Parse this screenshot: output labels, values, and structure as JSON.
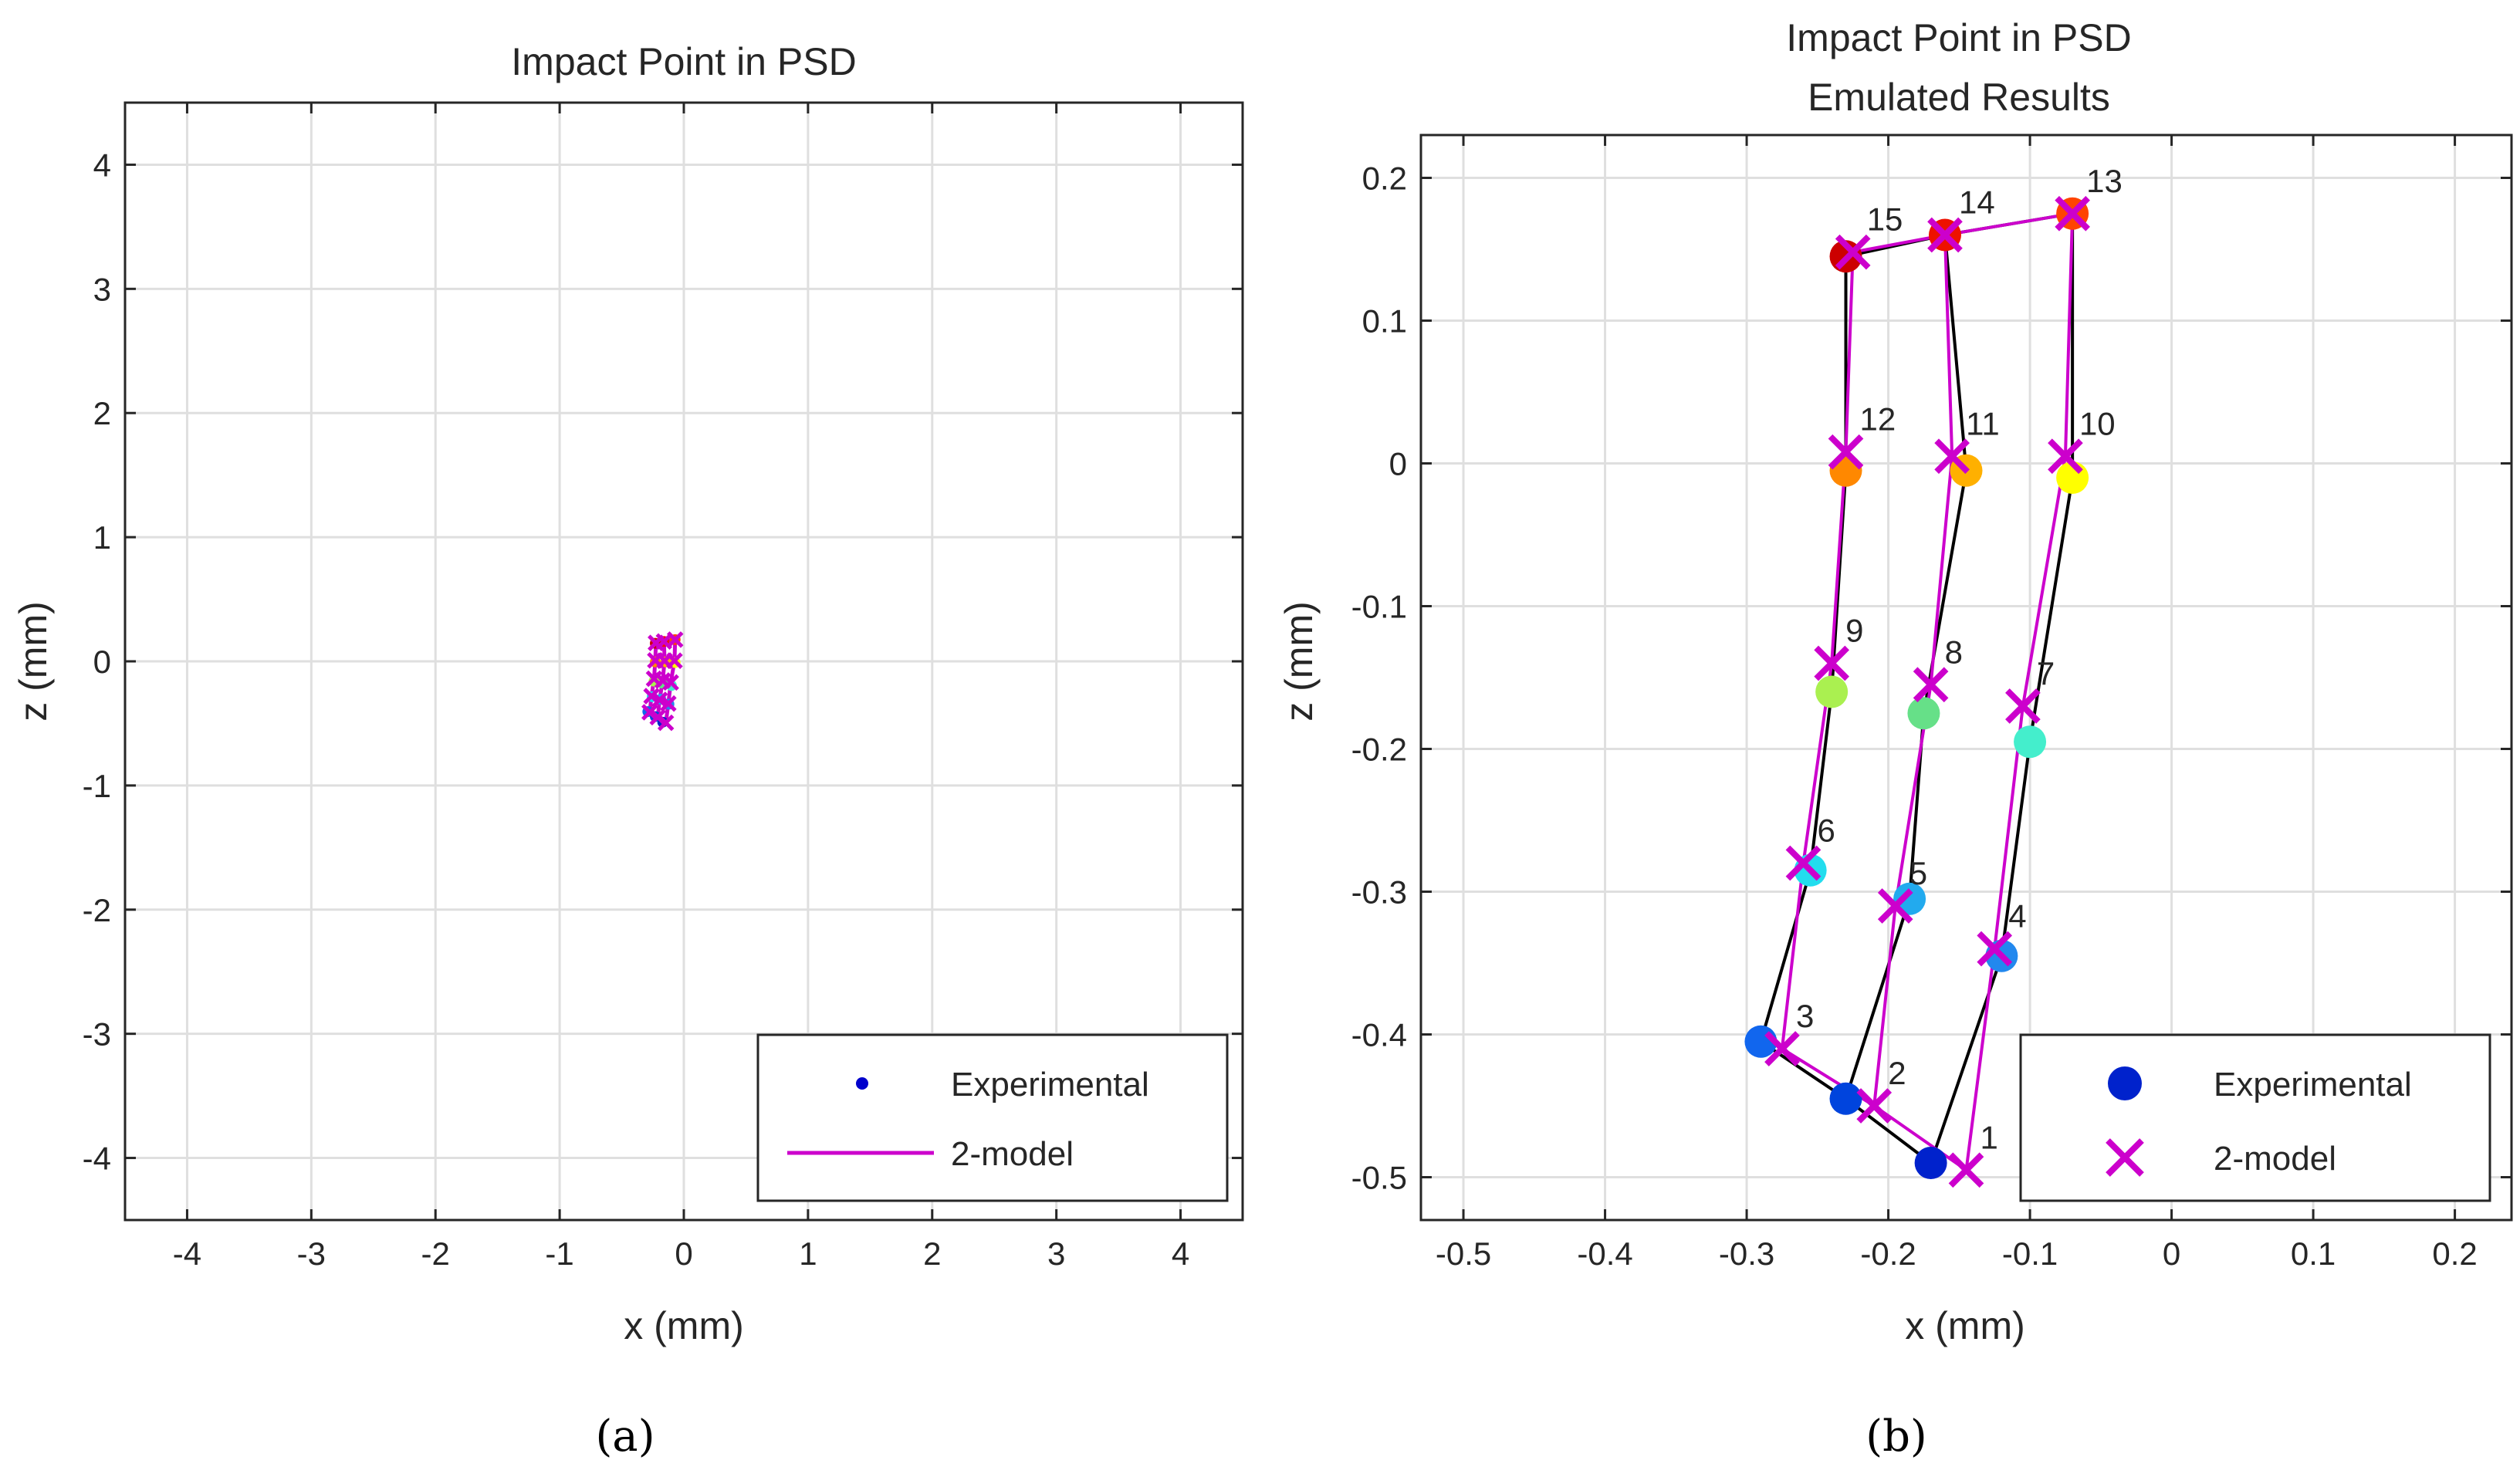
{
  "chart_data": [
    {
      "type": "line",
      "title": "Impact Point in PSD",
      "subtitle": "",
      "xlabel": "x (mm)",
      "ylabel": "z (mm)",
      "xlim": [
        -4.5,
        4.5
      ],
      "ylim": [
        -4.5,
        4.5
      ],
      "xticks": [
        -4,
        -3,
        -2,
        -1,
        0,
        1,
        2,
        3,
        4
      ],
      "yticks": [
        -4,
        -3,
        -2,
        -1,
        0,
        1,
        2,
        3,
        4
      ],
      "grid": true,
      "legend_position": "bottom-right",
      "caption": "(a)",
      "series": [
        {
          "name": "Experimental",
          "style": "marker-circle",
          "color": "#0000cc",
          "x": [
            -0.17,
            -0.23,
            -0.29,
            -0.12,
            -0.185,
            -0.255,
            -0.1,
            -0.175,
            -0.24,
            -0.07,
            -0.145,
            -0.23,
            -0.07,
            -0.16,
            -0.23
          ],
          "y": [
            -0.49,
            -0.445,
            -0.405,
            -0.345,
            -0.305,
            -0.285,
            -0.195,
            -0.175,
            -0.16,
            -0.01,
            -0.005,
            -0.005,
            0.175,
            0.16,
            0.145
          ]
        },
        {
          "name": "2-model",
          "style": "line",
          "color": "#cc00cc",
          "x": [
            -0.145,
            -0.21,
            -0.275,
            -0.125,
            -0.195,
            -0.26,
            -0.105,
            -0.17,
            -0.24,
            -0.075,
            -0.155,
            -0.23,
            -0.07,
            -0.16,
            -0.225
          ],
          "y": [
            -0.495,
            -0.45,
            -0.41,
            -0.34,
            -0.31,
            -0.28,
            -0.17,
            -0.155,
            -0.14,
            0.005,
            0.005,
            0.008,
            0.175,
            0.16,
            0.148
          ]
        }
      ]
    },
    {
      "type": "scatter",
      "title": "Impact Point in PSD",
      "subtitle": "Emulated Results",
      "xlabel": "x (mm)",
      "ylabel": "z (mm)",
      "xlim": [
        -0.53,
        0.24
      ],
      "ylim": [
        -0.53,
        0.23
      ],
      "xticks": [
        -0.5,
        -0.4,
        -0.3,
        -0.2,
        -0.1,
        0,
        0.1,
        0.2
      ],
      "yticks": [
        -0.5,
        -0.4,
        -0.3,
        -0.2,
        -0.1,
        0,
        0.1,
        0.2
      ],
      "grid": true,
      "legend_position": "bottom-right",
      "caption": "(b)",
      "series": [
        {
          "name": "Experimental",
          "marker": "circle",
          "line_color": "#000000",
          "x": [
            -0.17,
            -0.23,
            -0.29,
            -0.12,
            -0.185,
            -0.255,
            -0.1,
            -0.175,
            -0.24,
            -0.07,
            -0.145,
            -0.23,
            -0.07,
            -0.16,
            -0.23
          ],
          "y": [
            -0.49,
            -0.445,
            -0.405,
            -0.345,
            -0.305,
            -0.285,
            -0.195,
            -0.175,
            -0.16,
            -0.01,
            -0.005,
            -0.005,
            0.175,
            0.16,
            0.145
          ],
          "colors": [
            "#0022cc",
            "#0044dd",
            "#1166ee",
            "#2288ee",
            "#22aaee",
            "#22ddee",
            "#44eecc",
            "#66e088",
            "#aaf050",
            "#ffff00",
            "#ffb000",
            "#ff8800",
            "#ff4400",
            "#ee1100",
            "#cc0000"
          ]
        },
        {
          "name": "2-model",
          "marker": "x",
          "color": "#cc00cc",
          "x": [
            -0.145,
            -0.21,
            -0.275,
            -0.125,
            -0.195,
            -0.26,
            -0.105,
            -0.17,
            -0.24,
            -0.075,
            -0.155,
            -0.23,
            -0.07,
            -0.16,
            -0.225
          ],
          "y": [
            -0.495,
            -0.45,
            -0.41,
            -0.34,
            -0.31,
            -0.28,
            -0.17,
            -0.155,
            -0.14,
            0.005,
            0.005,
            0.008,
            0.175,
            0.16,
            0.148
          ]
        }
      ],
      "point_labels": [
        "1",
        "2",
        "3",
        "4",
        "5",
        "6",
        "7",
        "8",
        "9",
        "10",
        "11",
        "12",
        "13",
        "14",
        "15"
      ],
      "connections": [
        [
          0,
          1,
          2
        ],
        [
          0,
          3,
          6,
          9,
          12
        ],
        [
          1,
          4,
          7,
          10,
          13
        ],
        [
          2,
          5,
          8,
          11,
          14
        ],
        [
          12,
          13,
          14
        ]
      ]
    }
  ]
}
